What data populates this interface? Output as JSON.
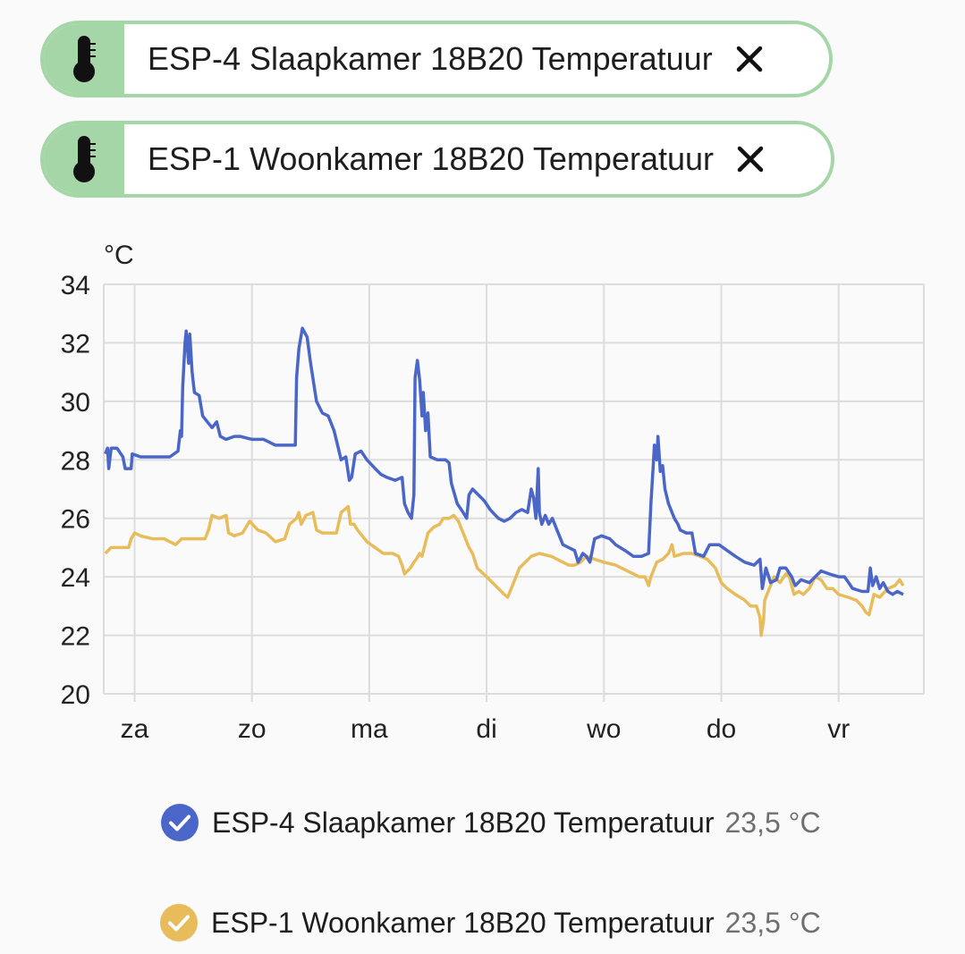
{
  "entities": [
    {
      "name": "ESP-4 Slaapkamer 18B20 Temperatuur",
      "icon": "thermometer-icon"
    },
    {
      "name": "ESP-1 Woonkamer 18B20 Temperatuur",
      "icon": "thermometer-icon"
    }
  ],
  "colors": {
    "chip_accent": "#a5d6a7",
    "series1": "#4a66c8",
    "series2": "#e8bc5a"
  },
  "legend": [
    {
      "name": "ESP-4 Slaapkamer 18B20 Temperatuur",
      "value": "23,5 °C"
    },
    {
      "name": "ESP-1 Woonkamer 18B20 Temperatuur",
      "value": "23,5 °C"
    }
  ],
  "chart_data": {
    "type": "line",
    "ylabel": "°C",
    "ylim": [
      20,
      34
    ],
    "yticks": [
      "34",
      "32",
      "30",
      "28",
      "26",
      "24",
      "22",
      "20"
    ],
    "xlim": [
      -0.25,
      6.75
    ],
    "xticks": [
      "za",
      "zo",
      "ma",
      "di",
      "wo",
      "do",
      "vr"
    ],
    "grid": true,
    "series": [
      {
        "name": "ESP-4 Slaapkamer 18B20 Temperatuur",
        "color": "#4a66c8",
        "points": [
          [
            -0.25,
            28.2
          ],
          [
            -0.23,
            28.4
          ],
          [
            -0.22,
            27.7
          ],
          [
            -0.2,
            28.4
          ],
          [
            -0.15,
            28.4
          ],
          [
            -0.1,
            28.1
          ],
          [
            -0.08,
            27.7
          ],
          [
            -0.03,
            27.7
          ],
          [
            -0.02,
            28.2
          ],
          [
            0.05,
            28.1
          ],
          [
            0.15,
            28.1
          ],
          [
            0.3,
            28.1
          ],
          [
            0.37,
            28.3
          ],
          [
            0.39,
            29.0
          ],
          [
            0.4,
            28.8
          ],
          [
            0.41,
            30.5
          ],
          [
            0.43,
            32.0
          ],
          [
            0.44,
            32.4
          ],
          [
            0.46,
            31.3
          ],
          [
            0.47,
            32.3
          ],
          [
            0.49,
            31.0
          ],
          [
            0.51,
            30.3
          ],
          [
            0.55,
            30.2
          ],
          [
            0.58,
            29.5
          ],
          [
            0.62,
            29.3
          ],
          [
            0.66,
            29.1
          ],
          [
            0.7,
            29.3
          ],
          [
            0.73,
            28.8
          ],
          [
            0.78,
            28.7
          ],
          [
            0.85,
            28.8
          ],
          [
            0.9,
            28.8
          ],
          [
            1.0,
            28.7
          ],
          [
            1.1,
            28.7
          ],
          [
            1.2,
            28.5
          ],
          [
            1.3,
            28.5
          ],
          [
            1.37,
            28.5
          ],
          [
            1.38,
            30.8
          ],
          [
            1.4,
            31.8
          ],
          [
            1.43,
            32.5
          ],
          [
            1.47,
            32.2
          ],
          [
            1.5,
            31.3
          ],
          [
            1.55,
            30.0
          ],
          [
            1.6,
            29.6
          ],
          [
            1.65,
            29.5
          ],
          [
            1.7,
            29.0
          ],
          [
            1.73,
            28.5
          ],
          [
            1.76,
            28.0
          ],
          [
            1.8,
            28.1
          ],
          [
            1.83,
            27.3
          ],
          [
            1.85,
            27.4
          ],
          [
            1.88,
            28.2
          ],
          [
            1.93,
            28.3
          ],
          [
            1.98,
            28.0
          ],
          [
            2.05,
            27.7
          ],
          [
            2.1,
            27.5
          ],
          [
            2.15,
            27.4
          ],
          [
            2.22,
            27.3
          ],
          [
            2.28,
            27.4
          ],
          [
            2.3,
            26.5
          ],
          [
            2.33,
            26.2
          ],
          [
            2.36,
            26.0
          ],
          [
            2.38,
            26.8
          ],
          [
            2.39,
            30.8
          ],
          [
            2.41,
            31.4
          ],
          [
            2.43,
            30.7
          ],
          [
            2.45,
            29.5
          ],
          [
            2.46,
            30.3
          ],
          [
            2.48,
            29.0
          ],
          [
            2.5,
            29.6
          ],
          [
            2.52,
            28.1
          ],
          [
            2.58,
            28.0
          ],
          [
            2.65,
            28.0
          ],
          [
            2.68,
            27.9
          ],
          [
            2.7,
            27.2
          ],
          [
            2.75,
            26.5
          ],
          [
            2.8,
            26.2
          ],
          [
            2.83,
            26.0
          ],
          [
            2.85,
            26.8
          ],
          [
            2.88,
            27.0
          ],
          [
            2.93,
            26.8
          ],
          [
            2.98,
            26.6
          ],
          [
            3.03,
            26.3
          ],
          [
            3.1,
            26.0
          ],
          [
            3.15,
            25.9
          ],
          [
            3.2,
            26.0
          ],
          [
            3.25,
            26.2
          ],
          [
            3.3,
            26.3
          ],
          [
            3.35,
            26.2
          ],
          [
            3.38,
            27.0
          ],
          [
            3.4,
            26.7
          ],
          [
            3.42,
            26.0
          ],
          [
            3.44,
            27.7
          ],
          [
            3.45,
            26.2
          ],
          [
            3.47,
            25.8
          ],
          [
            3.5,
            26.1
          ],
          [
            3.53,
            25.8
          ],
          [
            3.56,
            26.0
          ],
          [
            3.6,
            25.6
          ],
          [
            3.65,
            25.1
          ],
          [
            3.7,
            25.0
          ],
          [
            3.75,
            24.9
          ],
          [
            3.78,
            24.5
          ],
          [
            3.82,
            24.8
          ],
          [
            3.85,
            24.7
          ],
          [
            3.88,
            24.5
          ],
          [
            3.92,
            25.3
          ],
          [
            3.98,
            25.4
          ],
          [
            4.05,
            25.3
          ],
          [
            4.1,
            25.1
          ],
          [
            4.18,
            24.9
          ],
          [
            4.25,
            24.7
          ],
          [
            4.32,
            24.7
          ],
          [
            4.38,
            24.8
          ],
          [
            4.4,
            26.5
          ],
          [
            4.42,
            27.8
          ],
          [
            4.43,
            28.5
          ],
          [
            4.45,
            28.0
          ],
          [
            4.46,
            28.8
          ],
          [
            4.48,
            27.6
          ],
          [
            4.5,
            27.8
          ],
          [
            4.52,
            27.0
          ],
          [
            4.55,
            26.5
          ],
          [
            4.6,
            26.0
          ],
          [
            4.63,
            25.8
          ],
          [
            4.65,
            25.6
          ],
          [
            4.7,
            25.5
          ],
          [
            4.75,
            25.5
          ],
          [
            4.78,
            24.8
          ],
          [
            4.85,
            24.7
          ],
          [
            4.9,
            25.1
          ],
          [
            4.98,
            25.1
          ],
          [
            5.05,
            24.9
          ],
          [
            5.12,
            24.7
          ],
          [
            5.2,
            24.5
          ],
          [
            5.28,
            24.4
          ],
          [
            5.33,
            24.6
          ],
          [
            5.35,
            23.6
          ],
          [
            5.38,
            24.3
          ],
          [
            5.42,
            23.8
          ],
          [
            5.47,
            23.9
          ],
          [
            5.5,
            24.3
          ],
          [
            5.55,
            24.3
          ],
          [
            5.6,
            24.0
          ],
          [
            5.63,
            23.7
          ],
          [
            5.68,
            23.9
          ],
          [
            5.75,
            23.8
          ],
          [
            5.8,
            24.0
          ],
          [
            5.85,
            24.2
          ],
          [
            5.92,
            24.1
          ],
          [
            6.0,
            24.0
          ],
          [
            6.05,
            24.0
          ],
          [
            6.12,
            23.6
          ],
          [
            6.2,
            23.5
          ],
          [
            6.25,
            23.5
          ],
          [
            6.27,
            24.3
          ],
          [
            6.29,
            23.7
          ],
          [
            6.32,
            24.0
          ],
          [
            6.35,
            23.6
          ],
          [
            6.38,
            23.8
          ],
          [
            6.42,
            23.5
          ],
          [
            6.46,
            23.4
          ],
          [
            6.5,
            23.5
          ],
          [
            6.55,
            23.4
          ]
        ]
      },
      {
        "name": "ESP-1 Woonkamer 18B20 Temperatuur",
        "color": "#e8bc5a",
        "points": [
          [
            -0.25,
            24.8
          ],
          [
            -0.2,
            25.0
          ],
          [
            -0.1,
            25.0
          ],
          [
            -0.05,
            25.0
          ],
          [
            -0.03,
            25.3
          ],
          [
            0.0,
            25.5
          ],
          [
            0.05,
            25.4
          ],
          [
            0.15,
            25.3
          ],
          [
            0.25,
            25.3
          ],
          [
            0.35,
            25.1
          ],
          [
            0.4,
            25.3
          ],
          [
            0.5,
            25.3
          ],
          [
            0.6,
            25.3
          ],
          [
            0.63,
            25.6
          ],
          [
            0.66,
            26.1
          ],
          [
            0.72,
            26.0
          ],
          [
            0.78,
            26.1
          ],
          [
            0.8,
            25.5
          ],
          [
            0.85,
            25.4
          ],
          [
            0.92,
            25.5
          ],
          [
            0.98,
            25.9
          ],
          [
            1.05,
            25.6
          ],
          [
            1.12,
            25.5
          ],
          [
            1.2,
            25.2
          ],
          [
            1.28,
            25.3
          ],
          [
            1.32,
            25.8
          ],
          [
            1.38,
            26.0
          ],
          [
            1.4,
            26.2
          ],
          [
            1.42,
            25.8
          ],
          [
            1.46,
            26.1
          ],
          [
            1.52,
            26.2
          ],
          [
            1.55,
            25.6
          ],
          [
            1.6,
            25.5
          ],
          [
            1.65,
            25.5
          ],
          [
            1.72,
            25.5
          ],
          [
            1.76,
            26.2
          ],
          [
            1.82,
            26.4
          ],
          [
            1.84,
            25.8
          ],
          [
            1.87,
            25.8
          ],
          [
            1.9,
            25.6
          ],
          [
            1.98,
            25.2
          ],
          [
            2.05,
            25.0
          ],
          [
            2.12,
            24.8
          ],
          [
            2.2,
            24.8
          ],
          [
            2.25,
            24.7
          ],
          [
            2.28,
            24.4
          ],
          [
            2.3,
            24.1
          ],
          [
            2.35,
            24.3
          ],
          [
            2.38,
            24.5
          ],
          [
            2.4,
            24.6
          ],
          [
            2.43,
            24.8
          ],
          [
            2.45,
            24.7
          ],
          [
            2.5,
            25.5
          ],
          [
            2.55,
            25.7
          ],
          [
            2.6,
            25.8
          ],
          [
            2.63,
            26.0
          ],
          [
            2.68,
            26.0
          ],
          [
            2.72,
            26.1
          ],
          [
            2.76,
            25.9
          ],
          [
            2.8,
            25.5
          ],
          [
            2.85,
            25.0
          ],
          [
            2.88,
            24.8
          ],
          [
            2.92,
            24.3
          ],
          [
            3.0,
            24.0
          ],
          [
            3.05,
            23.8
          ],
          [
            3.1,
            23.6
          ],
          [
            3.15,
            23.4
          ],
          [
            3.18,
            23.3
          ],
          [
            3.2,
            23.5
          ],
          [
            3.25,
            24.0
          ],
          [
            3.28,
            24.3
          ],
          [
            3.33,
            24.5
          ],
          [
            3.38,
            24.7
          ],
          [
            3.45,
            24.8
          ],
          [
            3.55,
            24.7
          ],
          [
            3.65,
            24.5
          ],
          [
            3.7,
            24.4
          ],
          [
            3.75,
            24.4
          ],
          [
            3.8,
            24.5
          ],
          [
            3.85,
            24.7
          ],
          [
            3.92,
            24.6
          ],
          [
            4.0,
            24.5
          ],
          [
            4.1,
            24.4
          ],
          [
            4.2,
            24.2
          ],
          [
            4.3,
            24.0
          ],
          [
            4.35,
            24.0
          ],
          [
            4.38,
            23.7
          ],
          [
            4.4,
            24.0
          ],
          [
            4.45,
            24.5
          ],
          [
            4.5,
            24.6
          ],
          [
            4.55,
            24.8
          ],
          [
            4.58,
            25.1
          ],
          [
            4.6,
            24.7
          ],
          [
            4.68,
            24.8
          ],
          [
            4.75,
            24.8
          ],
          [
            4.82,
            24.7
          ],
          [
            4.88,
            24.6
          ],
          [
            4.95,
            24.3
          ],
          [
            5.0,
            23.8
          ],
          [
            5.05,
            23.6
          ],
          [
            5.12,
            23.4
          ],
          [
            5.2,
            23.2
          ],
          [
            5.25,
            23.0
          ],
          [
            5.3,
            23.0
          ],
          [
            5.33,
            22.6
          ],
          [
            5.34,
            22.0
          ],
          [
            5.36,
            22.5
          ],
          [
            5.37,
            23.2
          ],
          [
            5.4,
            23.5
          ],
          [
            5.45,
            24.0
          ],
          [
            5.5,
            23.8
          ],
          [
            5.55,
            24.1
          ],
          [
            5.58,
            24.0
          ],
          [
            5.62,
            23.4
          ],
          [
            5.66,
            23.5
          ],
          [
            5.7,
            23.4
          ],
          [
            5.75,
            23.6
          ],
          [
            5.8,
            24.0
          ],
          [
            5.85,
            23.9
          ],
          [
            5.9,
            23.6
          ],
          [
            5.95,
            23.6
          ],
          [
            6.0,
            23.4
          ],
          [
            6.08,
            23.3
          ],
          [
            6.15,
            23.2
          ],
          [
            6.2,
            23.0
          ],
          [
            6.23,
            22.8
          ],
          [
            6.26,
            22.7
          ],
          [
            6.3,
            23.4
          ],
          [
            6.35,
            23.3
          ],
          [
            6.42,
            23.6
          ],
          [
            6.48,
            23.7
          ],
          [
            6.52,
            23.9
          ],
          [
            6.55,
            23.7
          ]
        ]
      }
    ]
  }
}
